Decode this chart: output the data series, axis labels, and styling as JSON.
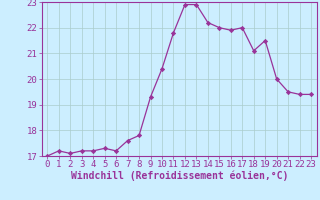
{
  "x": [
    0,
    1,
    2,
    3,
    4,
    5,
    6,
    7,
    8,
    9,
    10,
    11,
    12,
    13,
    14,
    15,
    16,
    17,
    18,
    19,
    20,
    21,
    22,
    23
  ],
  "y": [
    17.0,
    17.2,
    17.1,
    17.2,
    17.2,
    17.3,
    17.2,
    17.6,
    17.8,
    19.3,
    20.4,
    21.8,
    22.9,
    22.9,
    22.2,
    22.0,
    21.9,
    22.0,
    21.1,
    21.5,
    20.0,
    19.5,
    19.4,
    19.4
  ],
  "line_color": "#993399",
  "marker": "D",
  "marker_size": 2.2,
  "bg_color": "#cceeff",
  "grid_color": "#aacccc",
  "xlabel": "Windchill (Refroidissement éolien,°C)",
  "tick_color": "#993399",
  "axis_color": "#993399",
  "ylim": [
    17,
    23
  ],
  "xlim": [
    -0.5,
    23.5
  ],
  "yticks": [
    17,
    18,
    19,
    20,
    21,
    22,
    23
  ],
  "xticks": [
    0,
    1,
    2,
    3,
    4,
    5,
    6,
    7,
    8,
    9,
    10,
    11,
    12,
    13,
    14,
    15,
    16,
    17,
    18,
    19,
    20,
    21,
    22,
    23
  ],
  "font_size": 6.5,
  "xlabel_fontsize": 7.0
}
